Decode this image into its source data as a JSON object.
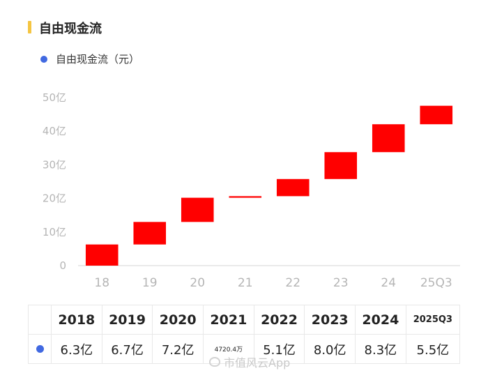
{
  "title": "自由现金流",
  "legend_label": "自由现金流（元）",
  "colors": {
    "bar": "#ff0000",
    "accent": "#f5c542",
    "dot": "#4169e1",
    "axis": "#e3e3e3",
    "tick": "#b5b5b5"
  },
  "table": {
    "years": [
      "2018",
      "2019",
      "2020",
      "2021",
      "2022",
      "2023",
      "2024",
      "2025Q3"
    ],
    "values": [
      "6.3亿",
      "6.7亿",
      "7.2亿",
      "4720.4万",
      "5.1亿",
      "8.0亿",
      "8.3亿",
      "5.5亿"
    ]
  },
  "watermark": "市值风云App",
  "chart_data": {
    "type": "waterfall",
    "title": "自由现金流",
    "series_name": "自由现金流（元）",
    "categories": [
      "18",
      "19",
      "20",
      "21",
      "22",
      "23",
      "24",
      "25Q3"
    ],
    "values": [
      6.3,
      6.7,
      7.2,
      0.47204,
      5.1,
      8.0,
      8.3,
      5.5
    ],
    "ylim": [
      0,
      50
    ],
    "yticks": [
      0,
      10,
      20,
      30,
      40,
      50
    ],
    "ytick_labels": [
      "0",
      "10亿",
      "20亿",
      "30亿",
      "40亿",
      "50亿"
    ],
    "unit": "亿"
  }
}
